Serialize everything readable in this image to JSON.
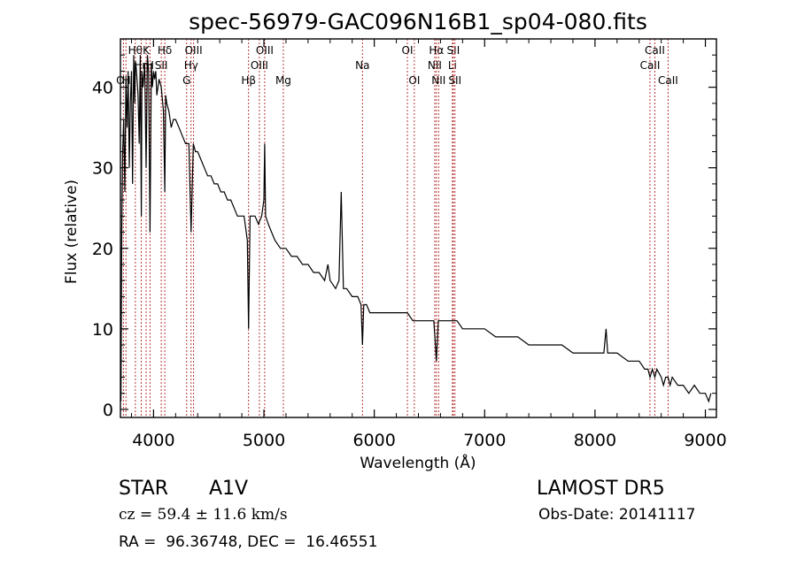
{
  "chart_data": {
    "type": "line",
    "title": "spec-56979-GAC096N16B1_sp04-080.fits",
    "xlabel": "Wavelength (Å)",
    "ylabel": "Flux (relative)",
    "xlim": [
      3700,
      9100
    ],
    "ylim": [
      -1,
      46
    ],
    "xticks": [
      4000,
      5000,
      6000,
      7000,
      8000,
      9000
    ],
    "yticks": [
      0,
      10,
      20,
      30,
      40
    ],
    "grid": false,
    "series": [
      {
        "x": [
          3705,
          3712,
          3720,
          3730,
          3740,
          3750,
          3760,
          3770,
          3780,
          3790,
          3800,
          3810,
          3820,
          3830,
          3835,
          3840,
          3850,
          3860,
          3870,
          3880,
          3889,
          3895,
          3905,
          3920,
          3933,
          3945,
          3955,
          3968,
          3980,
          3990,
          4000,
          4010,
          4020,
          4030,
          4040,
          4050,
          4070,
          4090,
          4102,
          4110,
          4120,
          4140,
          4160,
          4180,
          4200,
          4230,
          4260,
          4290,
          4320,
          4340,
          4360,
          4380,
          4400,
          4430,
          4460,
          4490,
          4520,
          4550,
          4580,
          4610,
          4640,
          4670,
          4700,
          4730,
          4760,
          4790,
          4820,
          4850,
          4861,
          4875,
          4890,
          4920,
          4950,
          4980,
          5000,
          5007,
          5015,
          5040,
          5070,
          5100,
          5150,
          5200,
          5250,
          5300,
          5350,
          5400,
          5450,
          5500,
          5550,
          5580,
          5600,
          5650,
          5680,
          5700,
          5720,
          5750,
          5800,
          5850,
          5880,
          5893,
          5905,
          5930,
          5960,
          6000,
          6050,
          6100,
          6150,
          6200,
          6250,
          6300,
          6350,
          6400,
          6450,
          6500,
          6540,
          6563,
          6580,
          6600,
          6650,
          6700,
          6750,
          6800,
          6900,
          7000,
          7100,
          7200,
          7300,
          7400,
          7500,
          7600,
          7700,
          7800,
          7900,
          8000,
          8080,
          8100,
          8115,
          8200,
          8300,
          8400,
          8450,
          8480,
          8498,
          8520,
          8542,
          8560,
          8600,
          8620,
          8640,
          8662,
          8680,
          8700,
          8750,
          8800,
          8850,
          8900,
          8950,
          9000,
          9030,
          9050
        ],
        "y": [
          1,
          22,
          32,
          36,
          27,
          41,
          35,
          42,
          30,
          38,
          42,
          28,
          44,
          38,
          43,
          43,
          41,
          39,
          33,
          44,
          24,
          42,
          40,
          43,
          30,
          44,
          42,
          22,
          43,
          40,
          42,
          41,
          42,
          39,
          40,
          41,
          40,
          37,
          27,
          39,
          38,
          37,
          35,
          36,
          36,
          35,
          34,
          33,
          33,
          22,
          33,
          32,
          32,
          31,
          30,
          29,
          29,
          28,
          28,
          27,
          27,
          26,
          26,
          25,
          24,
          24,
          24,
          21,
          10,
          24,
          24,
          24,
          23,
          24,
          26,
          33,
          24,
          23,
          22,
          21,
          20,
          20,
          19,
          19,
          18,
          18,
          17,
          17,
          16,
          18,
          16,
          15,
          16,
          27,
          15,
          15,
          14,
          14,
          13,
          8,
          13,
          13,
          12,
          12,
          12,
          12,
          12,
          12,
          12,
          12,
          11,
          11,
          11,
          11,
          11,
          6,
          11,
          11,
          11,
          11,
          11,
          10,
          10,
          10,
          9,
          9,
          9,
          8,
          8,
          8,
          8,
          7,
          7,
          7,
          7,
          10,
          7,
          7,
          6,
          6,
          5,
          5,
          4,
          5,
          4,
          5,
          4,
          3,
          4,
          4,
          3,
          4,
          3,
          3,
          2,
          3,
          2,
          2,
          1,
          2
        ]
      }
    ],
    "lines": [
      {
        "x": 3727,
        "row": 2,
        "label": "OII"
      },
      {
        "x": 3750,
        "row": 2,
        "label": "H"
      },
      {
        "x": 3835,
        "row": 0,
        "label": "Hθ"
      },
      {
        "x": 3889,
        "row": 1,
        "label": "Hη"
      },
      {
        "x": 3933,
        "row": 0,
        "label": "K"
      },
      {
        "x": 3968,
        "row": 1,
        "label": "H"
      },
      {
        "x": 4070,
        "row": 1,
        "label": "SII"
      },
      {
        "x": 4102,
        "row": 0,
        "label": "Hδ"
      },
      {
        "x": 4300,
        "row": 2,
        "label": "G"
      },
      {
        "x": 4340,
        "row": 1,
        "label": "Hγ"
      },
      {
        "x": 4363,
        "row": 0,
        "label": "OIII"
      },
      {
        "x": 4861,
        "row": 2,
        "label": "Hβ"
      },
      {
        "x": 4959,
        "row": 1,
        "label": "OIII"
      },
      {
        "x": 5007,
        "row": 0,
        "label": "OIII"
      },
      {
        "x": 5176,
        "row": 2,
        "label": "Mg"
      },
      {
        "x": 5893,
        "row": 1,
        "label": "Na"
      },
      {
        "x": 6300,
        "row": 0,
        "label": "OI"
      },
      {
        "x": 6363,
        "row": 2,
        "label": "OI"
      },
      {
        "x": 6548,
        "row": 1,
        "label": "NII"
      },
      {
        "x": 6563,
        "row": 0,
        "label": "Hα"
      },
      {
        "x": 6583,
        "row": 2,
        "label": "NII"
      },
      {
        "x": 6708,
        "row": 1,
        "label": "Li"
      },
      {
        "x": 6716,
        "row": 0,
        "label": "SII"
      },
      {
        "x": 6731,
        "row": 2,
        "label": "SII"
      },
      {
        "x": 8498,
        "row": 1,
        "label": "CaII"
      },
      {
        "x": 8542,
        "row": 0,
        "label": "CaII"
      },
      {
        "x": 8662,
        "row": 2,
        "label": "CaII"
      }
    ]
  },
  "info": {
    "class": "STAR",
    "subclass": "A1V",
    "survey": "LAMOST DR5",
    "cz": "cz = 59.4 ± 11.6 km/s",
    "obs_date": "Obs-Date: 20141117",
    "radec": "RA =  96.36748, DEC =  16.46551"
  }
}
